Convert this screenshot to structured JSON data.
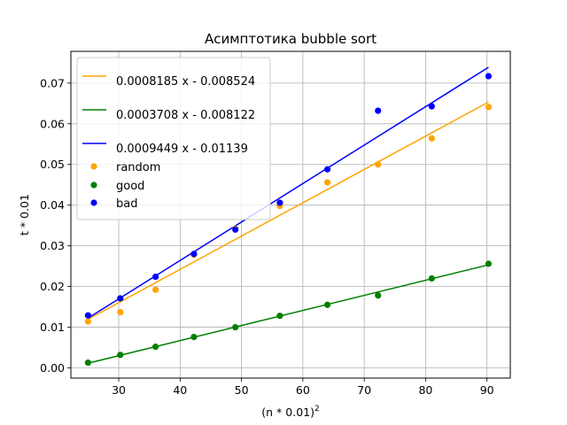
{
  "chart_data": {
    "type": "scatter",
    "title": "Асимптотика bubble sort",
    "xlabel_base": "(n * 0.01)",
    "xlabel_exp": "2",
    "ylabel": "t * 0.01",
    "xlim": [
      22.2,
      93.8
    ],
    "ylim": [
      -0.0025,
      0.0778
    ],
    "xticks": [
      30,
      40,
      50,
      60,
      70,
      80,
      90
    ],
    "yticks": [
      0.0,
      0.01,
      0.02,
      0.03,
      0.04,
      0.05,
      0.06,
      0.07
    ],
    "ytick_labels": [
      "0.00",
      "0.01",
      "0.02",
      "0.03",
      "0.04",
      "0.05",
      "0.06",
      "0.07"
    ],
    "grid": true,
    "legend_position": "top-left",
    "x": [
      25,
      30.25,
      36,
      42.25,
      49,
      56.25,
      64,
      72.25,
      81,
      90.25
    ],
    "lines": [
      {
        "label": "0.0008185 x - 0.008524",
        "slope": 0.0008185,
        "intercept": -0.008524,
        "color": "#ffa500"
      },
      {
        "label": "0.0003708 x - 0.008122",
        "slope": 0.0003708,
        "intercept": -0.008122,
        "color": "#008000"
      },
      {
        "label": "0.0009449 x - 0.01139",
        "slope": 0.0009449,
        "intercept": -0.01139,
        "color": "#0000ff"
      }
    ],
    "series": [
      {
        "name": "random",
        "color": "#ffa500",
        "values": [
          0.0114,
          0.0137,
          0.0192,
          0.0278,
          0.0342,
          0.0398,
          0.0456,
          0.05,
          0.0564,
          0.0641
        ]
      },
      {
        "name": "good",
        "color": "#008000",
        "values": [
          0.0013,
          0.0032,
          0.0052,
          0.0076,
          0.01,
          0.0128,
          0.0155,
          0.0178,
          0.022,
          0.0256
        ]
      },
      {
        "name": "bad",
        "color": "#0000ff",
        "values": [
          0.0129,
          0.0171,
          0.0224,
          0.028,
          0.034,
          0.0406,
          0.0488,
          0.0632,
          0.0643,
          0.0717
        ]
      }
    ]
  }
}
